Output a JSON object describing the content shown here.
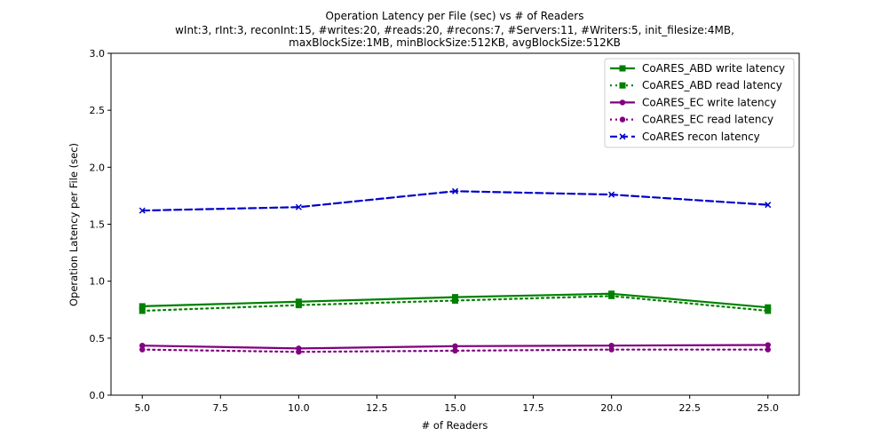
{
  "chart_data": {
    "type": "line",
    "title": "Operation Latency per File (sec) vs # of Readers",
    "subtitle": [
      "wInt:3, rInt:3, reconInt:15, #writes:20, #reads:20, #recons:7, #Servers:11, #Writers:5, init_filesize:4MB,",
      "maxBlockSize:1MB, minBlockSize:512KB, avgBlockSize:512KB"
    ],
    "xlabel": "# of Readers",
    "ylabel": "Operation Latency per File (sec)",
    "xlim": [
      4.0,
      26.0
    ],
    "ylim": [
      0.0,
      3.0
    ],
    "xticks": [
      "5.0",
      "7.5",
      "10.0",
      "12.5",
      "15.0",
      "17.5",
      "20.0",
      "22.5",
      "25.0"
    ],
    "yticks": [
      "0.0",
      "0.5",
      "1.0",
      "1.5",
      "2.0",
      "2.5",
      "3.0"
    ],
    "grid": false,
    "legend_position": "top-right",
    "x": [
      5,
      10,
      15,
      20,
      25
    ],
    "series": [
      {
        "name": "CoARES_ABD write latency",
        "values": [
          0.78,
          0.82,
          0.86,
          0.89,
          0.77
        ],
        "color": "#008000",
        "style": "solid",
        "marker": "square"
      },
      {
        "name": "CoARES_ABD read latency",
        "values": [
          0.74,
          0.79,
          0.83,
          0.87,
          0.74
        ],
        "color": "#008000",
        "style": "dotted",
        "marker": "square"
      },
      {
        "name": "CoARES_EC write latency",
        "values": [
          0.435,
          0.41,
          0.43,
          0.435,
          0.44
        ],
        "color": "#800080",
        "style": "solid",
        "marker": "circle"
      },
      {
        "name": "CoARES_EC read latency",
        "values": [
          0.4,
          0.38,
          0.39,
          0.4,
          0.4
        ],
        "color": "#800080",
        "style": "dotted",
        "marker": "circle"
      },
      {
        "name": "CoARES recon latency",
        "values": [
          1.62,
          1.65,
          1.79,
          1.76,
          1.67
        ],
        "color": "#0000cc",
        "style": "dashed",
        "marker": "x"
      }
    ]
  }
}
